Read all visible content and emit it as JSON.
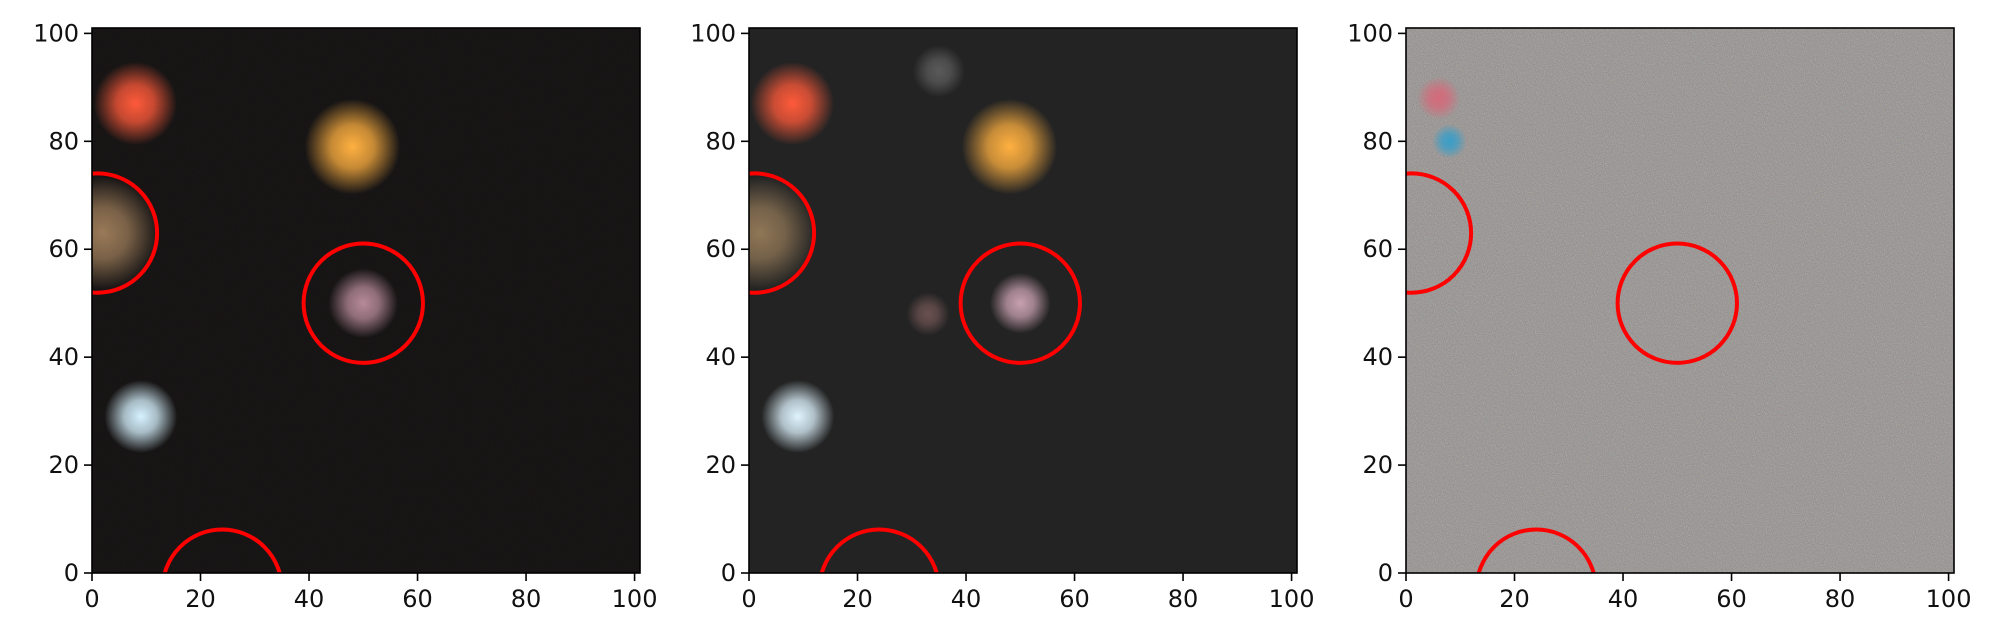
{
  "figure": {
    "panels": [
      {
        "name": "panel-observed",
        "style": {
          "background": "#141212",
          "noise_color": "#5a4a48",
          "noise_opacity": 0.55
        },
        "axes": {
          "x_range": [
            0,
            101
          ],
          "y_range": [
            0,
            101
          ],
          "x_ticks": [
            0,
            20,
            40,
            60,
            80,
            100
          ],
          "y_ticks": [
            0,
            20,
            40,
            60,
            80,
            100
          ]
        },
        "sources": [
          {
            "name": "red-star",
            "x": 8,
            "y": 87,
            "r": 4.8,
            "color": "#ff5a3a"
          },
          {
            "name": "orange-galaxy",
            "x": 48,
            "y": 79,
            "r": 5.5,
            "color": "#ffb040"
          },
          {
            "name": "brown-galaxy",
            "x": 2,
            "y": 63,
            "r": 6.5,
            "color": "#9a7a58"
          },
          {
            "name": "pink-galaxy",
            "x": 50,
            "y": 50,
            "r": 4.0,
            "color": "#b78a9a"
          },
          {
            "name": "blue-star",
            "x": 9,
            "y": 29,
            "r": 4.2,
            "color": "#d6f2ff"
          }
        ],
        "circles": [
          {
            "x": 50,
            "y": 50,
            "r": 11
          },
          {
            "x": 1,
            "y": 63,
            "r": 11
          },
          {
            "x": 24,
            "y": -3,
            "r": 11
          }
        ]
      },
      {
        "name": "panel-model",
        "style": {
          "background": "#232323",
          "noise_color": "#000000",
          "noise_opacity": 0.0
        },
        "axes": {
          "x_range": [
            0,
            101
          ],
          "y_range": [
            0,
            101
          ],
          "x_ticks": [
            0,
            20,
            40,
            60,
            80,
            100
          ],
          "y_ticks": [
            0,
            20,
            40,
            60,
            80,
            100
          ]
        },
        "sources": [
          {
            "name": "red-star",
            "x": 8,
            "y": 87,
            "r": 4.8,
            "color": "#ff5a3a"
          },
          {
            "name": "orange-galaxy",
            "x": 48,
            "y": 79,
            "r": 5.5,
            "color": "#ffb040"
          },
          {
            "name": "brown-galaxy",
            "x": 2,
            "y": 63,
            "r": 6.5,
            "color": "#8f7656"
          },
          {
            "name": "pink-galaxy",
            "x": 50,
            "y": 50,
            "r": 3.5,
            "color": "#c8a0b0"
          },
          {
            "name": "faint-galaxy",
            "x": 33,
            "y": 48,
            "r": 2.5,
            "color": "#6a5050"
          },
          {
            "name": "faint-top-source",
            "x": 35,
            "y": 93,
            "r": 3.0,
            "color": "#5a5a5a"
          },
          {
            "name": "blue-star",
            "x": 9,
            "y": 29,
            "r": 4.2,
            "color": "#dff4ff"
          }
        ],
        "circles": [
          {
            "x": 50,
            "y": 50,
            "r": 11
          },
          {
            "x": 1,
            "y": 63,
            "r": 11
          },
          {
            "x": 24,
            "y": -3,
            "r": 11
          }
        ]
      },
      {
        "name": "panel-residual",
        "style": {
          "background": "#8e8a88",
          "noise_color": "#b8a0a8",
          "noise_opacity": 0.55
        },
        "axes": {
          "x_range": [
            0,
            101
          ],
          "y_range": [
            0,
            101
          ],
          "x_ticks": [
            0,
            20,
            40,
            60,
            80,
            100
          ],
          "y_ticks": [
            0,
            20,
            40,
            60,
            80,
            100
          ]
        },
        "sources": [
          {
            "name": "residual-streak",
            "x": 8,
            "y": 80,
            "r": 2.0,
            "color": "#3a9ec8"
          },
          {
            "name": "residual-red-spot",
            "x": 6,
            "y": 88,
            "r": 2.5,
            "color": "#d46a7a"
          }
        ],
        "circles": [
          {
            "x": 50,
            "y": 50,
            "r": 11
          },
          {
            "x": 1,
            "y": 63,
            "r": 11
          },
          {
            "x": 24,
            "y": -3,
            "r": 11
          }
        ]
      }
    ],
    "circle_color": "#ff0000"
  }
}
